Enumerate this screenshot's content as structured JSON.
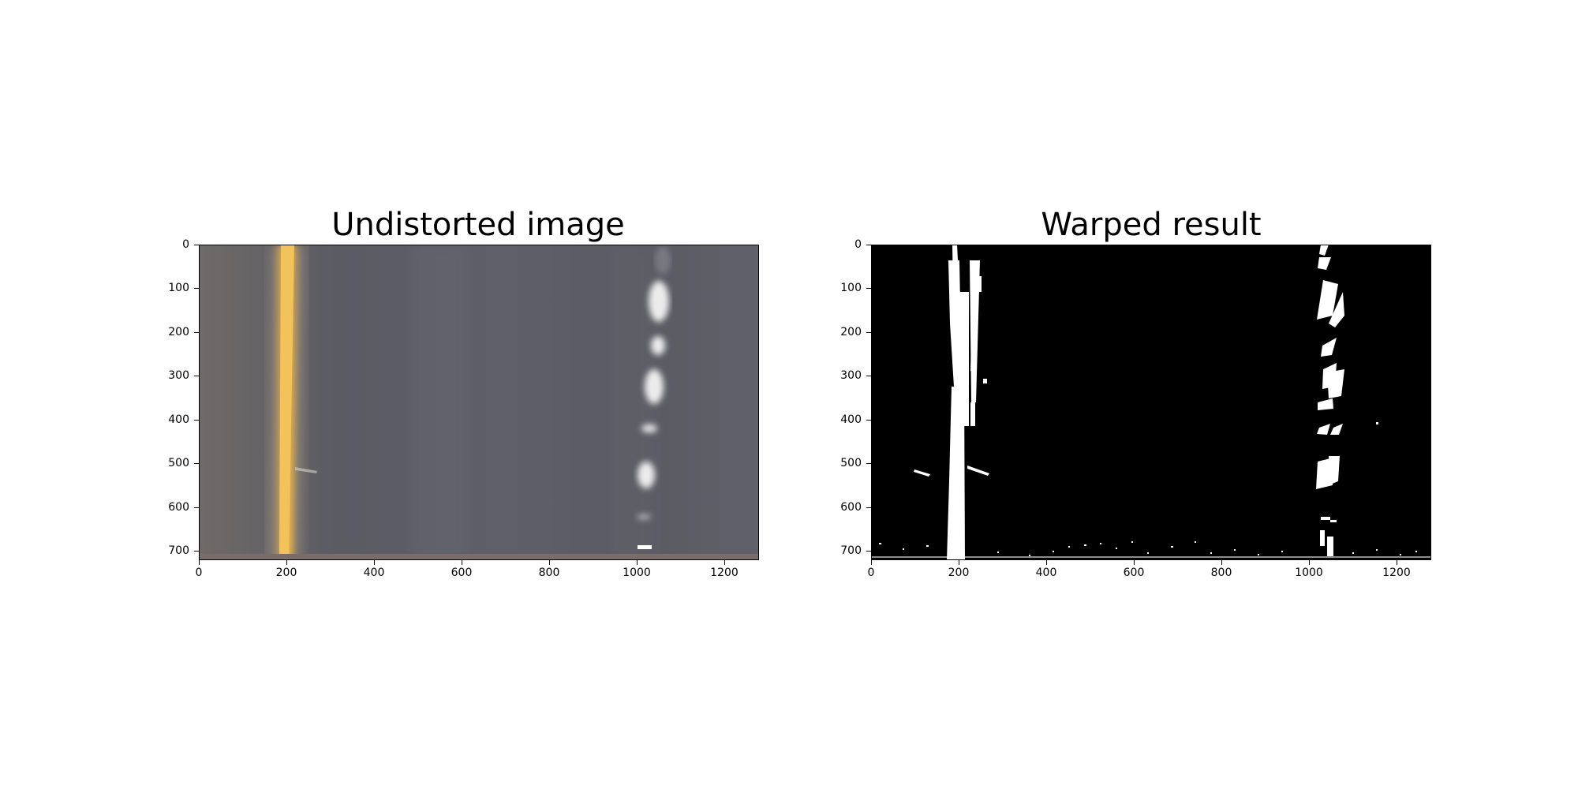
{
  "figure": {
    "panels": [
      {
        "id": "undistorted",
        "title": "Undistorted image",
        "image": "undistorted-road-photo",
        "x_ticks": [
          "0",
          "200",
          "400",
          "600",
          "800",
          "1000",
          "1200"
        ],
        "y_ticks": [
          "0",
          "100",
          "200",
          "300",
          "400",
          "500",
          "600",
          "700"
        ]
      },
      {
        "id": "warped",
        "title": "Warped result",
        "image": "binary-warped-lane-mask",
        "x_ticks": [
          "0",
          "200",
          "400",
          "600",
          "800",
          "1000",
          "1200"
        ],
        "y_ticks": [
          "0",
          "100",
          "200",
          "300",
          "400",
          "500",
          "600",
          "700"
        ]
      }
    ],
    "image_extent": {
      "width": 1280,
      "height": 720
    },
    "colors": {
      "road": "#5f5f68",
      "yellow_line": "#e9b54a",
      "white_line": "#f2f2f2",
      "mask_bg": "#000000",
      "mask_fg": "#ffffff"
    }
  }
}
